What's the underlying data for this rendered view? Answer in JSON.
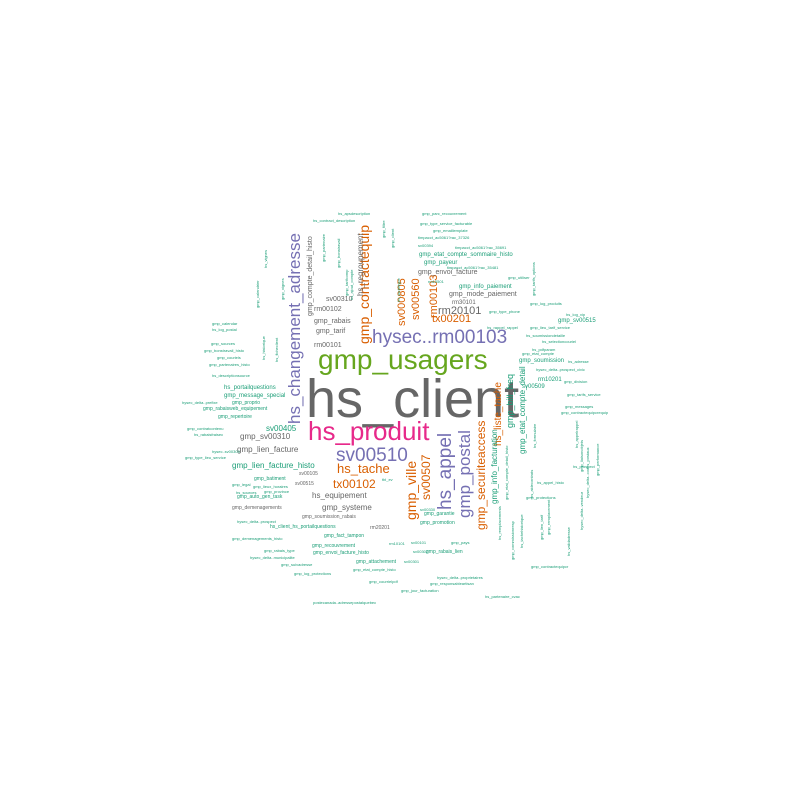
{
  "colors": {
    "gray": "#666666",
    "green": "#66a61e",
    "pink": "#e7298a",
    "purple": "#7570b3",
    "orange": "#d95f02",
    "teal": "#1b9e77"
  },
  "words": [
    {
      "text": "hs_client",
      "color": "gray"
    },
    {
      "text": "gmp_usagers",
      "color": "green"
    },
    {
      "text": "hs_produit",
      "color": "pink"
    },
    {
      "text": "hysec..rm00103",
      "color": "purple"
    },
    {
      "text": "sv00510",
      "color": "purple"
    },
    {
      "text": "hs_changement_adresse",
      "color": "purple"
    },
    {
      "text": "gmp_contractequip",
      "color": "orange"
    },
    {
      "text": "hs_appel",
      "color": "purple"
    },
    {
      "text": "gmp_postal",
      "color": "purple"
    },
    {
      "text": "gmp_ville",
      "color": "orange"
    },
    {
      "text": "hs_tache",
      "color": "orange"
    },
    {
      "text": "tx00102",
      "color": "orange"
    },
    {
      "text": "sv00507",
      "color": "orange"
    },
    {
      "text": "gmp_securiteaccess",
      "color": "orange"
    },
    {
      "text": "sv000805",
      "color": "orange"
    },
    {
      "text": "sv00560",
      "color": "orange"
    },
    {
      "text": "rm00103",
      "color": "orange"
    },
    {
      "text": "tx00201",
      "color": "orange"
    },
    {
      "text": "rm20101",
      "color": "gray"
    },
    {
      "text": "hs_liste_tache",
      "color": "orange"
    },
    {
      "text": "gmp_bill_freq",
      "color": "teal"
    },
    {
      "text": "gmp_info_facturation",
      "color": "teal"
    },
    {
      "text": "gmp_etat_compte_detail",
      "color": "teal"
    },
    {
      "text": "hs_regroupement",
      "color": "gray"
    },
    {
      "text": "gmp_compte_detail_histo",
      "color": "gray"
    },
    {
      "text": "hs_equipement",
      "color": "gray"
    },
    {
      "text": "gmp_systeme",
      "color": "gray"
    },
    {
      "text": "gmp_lien_facture",
      "color": "gray"
    },
    {
      "text": "gmp_lien_facture_histo",
      "color": "teal"
    },
    {
      "text": "sv00405",
      "color": "teal"
    },
    {
      "text": "gmp_sv00310",
      "color": "gray"
    },
    {
      "text": "rm00101",
      "color": "gray"
    },
    {
      "text": "rm00102",
      "color": "gray"
    },
    {
      "text": "sv00310",
      "color": "gray"
    },
    {
      "text": "gmp_rabais",
      "color": "gray"
    },
    {
      "text": "gmp_tarif",
      "color": "gray"
    },
    {
      "text": "gmp_envoi_facture",
      "color": "gray"
    },
    {
      "text": "gmp_mode_paiement",
      "color": "gray"
    },
    {
      "text": "gmp_info_paiement",
      "color": "teal"
    },
    {
      "text": "gmp_payeur",
      "color": "teal"
    },
    {
      "text": "gmp_etat_compte_sommaire_histo",
      "color": "teal"
    },
    {
      "text": "rm30101",
      "color": "gray"
    },
    {
      "text": "gmp_sv00515",
      "color": "teal"
    },
    {
      "text": "rm10201",
      "color": "teal"
    },
    {
      "text": "sv00509",
      "color": "teal"
    },
    {
      "text": "gmp_soumission",
      "color": "teal"
    },
    {
      "text": "hs_portailquestions",
      "color": "teal"
    },
    {
      "text": "gmp_message_special",
      "color": "teal"
    },
    {
      "text": "gmp_proprio",
      "color": "teal"
    },
    {
      "text": "gmp_rabaisweb_equipement",
      "color": "teal"
    },
    {
      "text": "gmp_repertoire",
      "color": "teal"
    },
    {
      "text": "gmp_batiment",
      "color": "teal"
    },
    {
      "text": "sv00105",
      "color": "gray"
    },
    {
      "text": "sv00515",
      "color": "gray"
    },
    {
      "text": "gmp_demenagements",
      "color": "gray"
    },
    {
      "text": "gmp_soumission_rabais",
      "color": "gray"
    },
    {
      "text": "gmp_garantie",
      "color": "teal"
    },
    {
      "text": "gmp_promotion",
      "color": "teal"
    },
    {
      "text": "gmp_fact_tampon",
      "color": "teal"
    },
    {
      "text": "gmp_recouvrement",
      "color": "teal"
    },
    {
      "text": "gmp_envoi_facture_histo",
      "color": "teal"
    },
    {
      "text": "gmp_rabais_lien",
      "color": "teal"
    },
    {
      "text": "gmp_attachement",
      "color": "teal"
    },
    {
      "text": "hs_client_hs_portailquestions",
      "color": "teal"
    },
    {
      "text": "rm20201",
      "color": "gray"
    },
    {
      "text": "gmp_auto_gen_task",
      "color": "teal"
    },
    {
      "text": "hs_apsdescription",
      "color": "teal"
    },
    {
      "text": "hs_contract_description",
      "color": "teal"
    },
    {
      "text": "gmp_type_service_facturable",
      "color": "teal"
    },
    {
      "text": "gmp_parc_recouvrement",
      "color": "teal"
    },
    {
      "text": "gmp_emaillemplate",
      "color": "teal"
    },
    {
      "text": "timpacct_ac5061?rac_37326",
      "color": "teal"
    },
    {
      "text": "timpacct_ac5061?rac_35691",
      "color": "teal"
    },
    {
      "text": "timpacct_ac5061?rac_35481",
      "color": "teal"
    },
    {
      "text": "sv00394",
      "color": "teal"
    },
    {
      "text": "gmp_utiliser",
      "color": "teal"
    },
    {
      "text": "rm10501",
      "color": "teal"
    },
    {
      "text": "gmp_log_produits",
      "color": "teal"
    },
    {
      "text": "hs_log_vip",
      "color": "teal"
    },
    {
      "text": "hs_rappel_rappel",
      "color": "teal"
    },
    {
      "text": "gmp_lieu_tarif_service",
      "color": "teal"
    },
    {
      "text": "hs_soumissiondetaille",
      "color": "teal"
    },
    {
      "text": "hs_selectioncouriel",
      "color": "teal"
    },
    {
      "text": "hs_pdfparam",
      "color": "teal"
    },
    {
      "text": "gmp_calendar",
      "color": "teal"
    },
    {
      "text": "hs_log_postal",
      "color": "teal"
    },
    {
      "text": "gmp_sources",
      "color": "teal"
    },
    {
      "text": "gmp_bonstravail_histo",
      "color": "teal"
    },
    {
      "text": "gmp_couriels",
      "color": "teal"
    },
    {
      "text": "gmp_partenaires_histo",
      "color": "teal"
    },
    {
      "text": "hs_descriptionsource",
      "color": "teal"
    },
    {
      "text": "gmp_contratcontenu",
      "color": "teal"
    },
    {
      "text": "hs_rabaisfraisec",
      "color": "teal"
    },
    {
      "text": "hysec..sv00300",
      "color": "teal"
    },
    {
      "text": "gmp_type_lieu_service",
      "color": "teal"
    },
    {
      "text": "gmp_legal",
      "color": "teal"
    },
    {
      "text": "gmp_lieux_horaires",
      "color": "teal"
    },
    {
      "text": "hs_sources",
      "color": "teal"
    },
    {
      "text": "gmp_province",
      "color": "teal"
    },
    {
      "text": "hysec_delta..prefixe",
      "color": "teal"
    },
    {
      "text": "hysec_delta..prospect",
      "color": "teal"
    },
    {
      "text": "hysec_delta..municipalite",
      "color": "teal"
    },
    {
      "text": "gmp_demenagements_histo",
      "color": "teal"
    },
    {
      "text": "gmp_rabais_type",
      "color": "teal"
    },
    {
      "text": "gmp_suivadresse",
      "color": "teal"
    },
    {
      "text": "gmp_log_protections",
      "color": "teal"
    },
    {
      "text": "gmp_pays",
      "color": "teal"
    },
    {
      "text": "gmp_etat_compte_histo",
      "color": "teal"
    },
    {
      "text": "hysec_delta..proprietaires",
      "color": "teal"
    },
    {
      "text": "gmp_responsableartisan",
      "color": "teal"
    },
    {
      "text": "gmp_courrielpdf",
      "color": "teal"
    },
    {
      "text": "gmp_jour_facturation",
      "color": "teal"
    },
    {
      "text": "hs_partenaire_cvac",
      "color": "teal"
    },
    {
      "text": "postecanada..adressepostalquebec",
      "color": "teal"
    },
    {
      "text": "gmp_contractequipcr",
      "color": "teal"
    },
    {
      "text": "gmp_protections",
      "color": "teal"
    },
    {
      "text": "hs_appel_histo",
      "color": "teal"
    },
    {
      "text": "hs_prospect",
      "color": "teal"
    },
    {
      "text": "gmp_messages",
      "color": "teal"
    },
    {
      "text": "hysec_delta..prospect_civic",
      "color": "teal"
    },
    {
      "text": "gmp_division",
      "color": "teal"
    },
    {
      "text": "gmp_contractequipcrequip",
      "color": "teal"
    },
    {
      "text": "gmp_tarifs_service",
      "color": "teal"
    },
    {
      "text": "gmp_etat_compte",
      "color": "teal"
    },
    {
      "text": "hs_adresse",
      "color": "teal"
    },
    {
      "text": "gmp_type_phone",
      "color": "teal"
    },
    {
      "text": "sv00101",
      "color": "teal"
    },
    {
      "text": "sv00301",
      "color": "teal"
    },
    {
      "text": "sv00302",
      "color": "teal"
    },
    {
      "text": "sv00330",
      "color": "teal"
    },
    {
      "text": "rm10101",
      "color": "teal"
    },
    {
      "text": "tbl_ev",
      "color": "teal"
    },
    {
      "text": "hs_tachetype",
      "color": "teal"
    },
    {
      "text": "gmp_tarifcomp",
      "color": "teal"
    },
    {
      "text": "hs_ajout_compte",
      "color": "teal"
    },
    {
      "text": "gmp_filtre",
      "color": "teal"
    },
    {
      "text": "gmp_client",
      "color": "teal"
    },
    {
      "text": "gmp_partenaire",
      "color": "teal"
    },
    {
      "text": "gmp_bonstravail",
      "color": "teal"
    },
    {
      "text": "hs_ficheclient",
      "color": "teal"
    },
    {
      "text": "gmp_vignes",
      "color": "teal"
    },
    {
      "text": "hs_vignes",
      "color": "teal"
    },
    {
      "text": "gmp_calendrier",
      "color": "teal"
    },
    {
      "text": "hs_historique",
      "color": "teal"
    },
    {
      "text": "hs_remplacements",
      "color": "teal"
    },
    {
      "text": "gmp_commissionresp",
      "color": "teal"
    },
    {
      "text": "hs_aidecontrats",
      "color": "teal"
    },
    {
      "text": "gmp_etat_compte_detail_histo",
      "color": "teal"
    },
    {
      "text": "hs_tachehistorique",
      "color": "teal"
    },
    {
      "text": "gmp_lien_tarif",
      "color": "teal"
    },
    {
      "text": "hs_formulaire",
      "color": "teal"
    },
    {
      "text": "hs_appelrappel",
      "color": "teal"
    },
    {
      "text": "gmp_liaisonobjets",
      "color": "teal"
    },
    {
      "text": "hysec_delta..codes_postaux",
      "color": "teal"
    },
    {
      "text": "hs_validadresse",
      "color": "teal"
    },
    {
      "text": "gmp_performance",
      "color": "teal"
    },
    {
      "text": "hysec_delta..vendeur",
      "color": "teal"
    },
    {
      "text": "gmp_remplacement",
      "color": "teal"
    },
    {
      "text": "gmp_tarifs_options",
      "color": "teal"
    }
  ]
}
